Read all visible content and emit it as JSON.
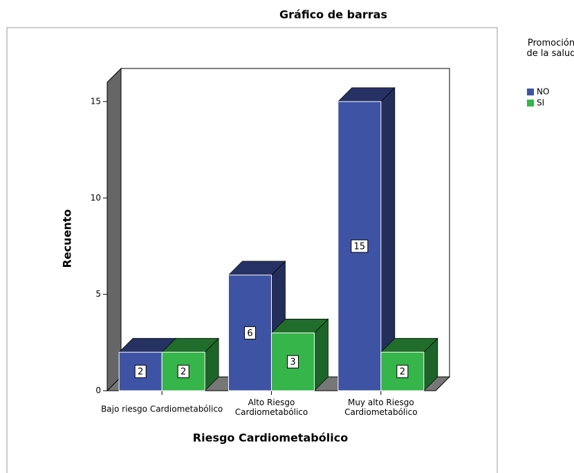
{
  "chart_data": {
    "type": "bar3d",
    "title": "Gráfico de barras",
    "x_label": "Riesgo Cardiometabólico",
    "y_label": "Recuento",
    "legend_title": "Promoción\nde la salud",
    "categories": [
      "Bajo riesgo Cardiometabólico",
      "Alto Riesgo\nCardiometabólico",
      "Muy alto Riesgo\nCardiometabólico"
    ],
    "series": [
      {
        "name": "NO",
        "color": "#3f53a5",
        "values": [
          2,
          6,
          15
        ]
      },
      {
        "name": "SI",
        "color": "#35b54a",
        "values": [
          2,
          3,
          2
        ]
      }
    ],
    "ylim": [
      0,
      16
    ],
    "yticks": [
      0,
      5,
      10,
      15
    ],
    "legend": "right"
  }
}
